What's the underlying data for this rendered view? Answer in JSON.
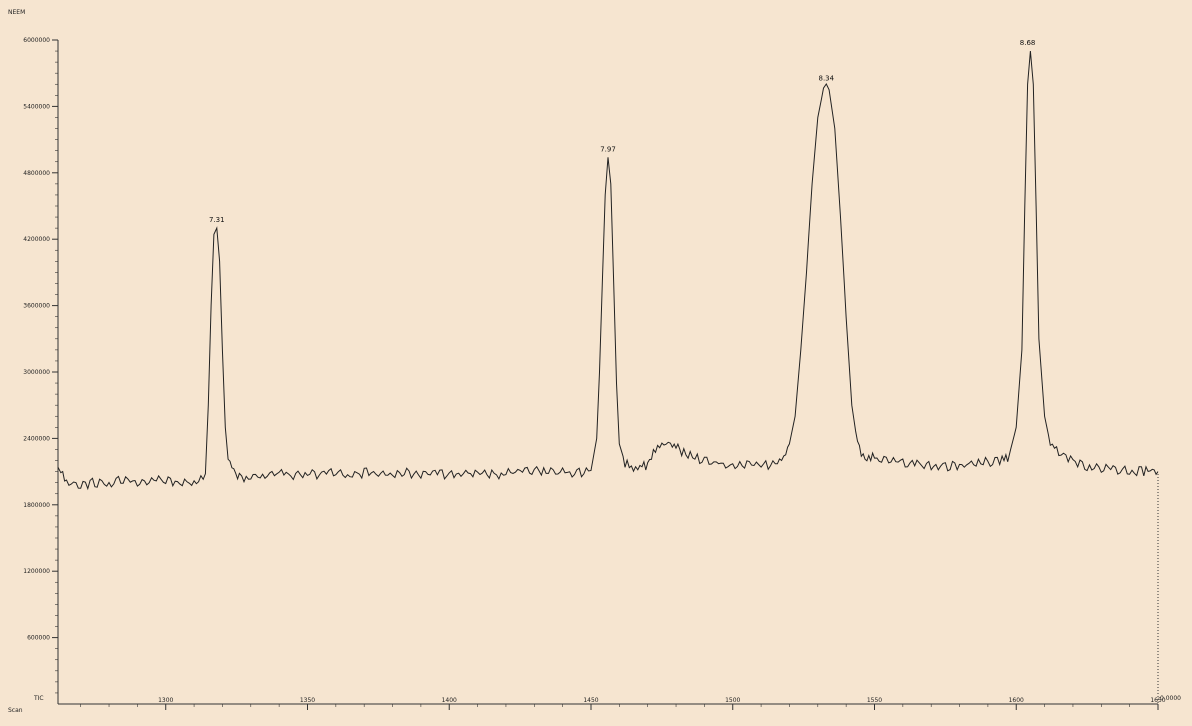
{
  "colors": {
    "background": "#f6e5d0",
    "trace": "#222222",
    "axis": "#333333"
  },
  "chart_data": {
    "type": "line",
    "ylabel": "NEEM",
    "xlabel": "Scan",
    "y_axis_bottom_label": "TIC",
    "right_axis_label": "0.0000",
    "ylim": [
      0,
      6000000
    ],
    "xlim": [
      1262,
      1650
    ],
    "grid": false,
    "y_ticks": [
      {
        "value": 600000,
        "label": "600000"
      },
      {
        "value": 1200000,
        "label": "1200000"
      },
      {
        "value": 1800000,
        "label": "1800000"
      },
      {
        "value": 2400000,
        "label": "2400000"
      },
      {
        "value": 3000000,
        "label": "3000000"
      },
      {
        "value": 3600000,
        "label": "3600000"
      },
      {
        "value": 4200000,
        "label": "4200000"
      },
      {
        "value": 4800000,
        "label": "4800000"
      },
      {
        "value": 5400000,
        "label": "5400000"
      },
      {
        "value": 6000000,
        "label": "6000000"
      }
    ],
    "x_ticks": [
      {
        "value": 1300,
        "label": "1300"
      },
      {
        "value": 1350,
        "label": "1350"
      },
      {
        "value": 1400,
        "label": "1400"
      },
      {
        "value": 1450,
        "label": "1450"
      },
      {
        "value": 1500,
        "label": "1500"
      },
      {
        "value": 1550,
        "label": "1550"
      },
      {
        "value": 1600,
        "label": "1600"
      },
      {
        "value": 1650,
        "label": "1650"
      }
    ],
    "peaks": [
      {
        "x": 1318,
        "y": 4300000,
        "label": "7.31"
      },
      {
        "x": 1456,
        "y": 4940000,
        "label": "7.97"
      },
      {
        "x": 1533,
        "y": 5580000,
        "label": "8.34"
      },
      {
        "x": 1604,
        "y": 5900000,
        "label": "8.68"
      }
    ],
    "series": [
      {
        "x": [
          1262,
          1263,
          1265,
          1270,
          1275,
          1280,
          1285,
          1290,
          1295,
          1300,
          1305,
          1310,
          1314,
          1315,
          1316,
          1317,
          1318,
          1319,
          1320,
          1321,
          1322,
          1324,
          1326,
          1330,
          1335,
          1340,
          1345,
          1350,
          1355,
          1360,
          1365,
          1370,
          1375,
          1380,
          1385,
          1390,
          1395,
          1400,
          1405,
          1410,
          1415,
          1420,
          1425,
          1430,
          1435,
          1440,
          1445,
          1450,
          1452,
          1453,
          1454,
          1455,
          1456,
          1457,
          1458,
          1459,
          1460,
          1462,
          1465,
          1468,
          1470,
          1472,
          1475,
          1478,
          1480,
          1482,
          1485,
          1490,
          1495,
          1500,
          1505,
          1510,
          1515,
          1518,
          1520,
          1522,
          1524,
          1526,
          1528,
          1530,
          1532,
          1533,
          1534,
          1536,
          1538,
          1540,
          1542,
          1544,
          1546,
          1548,
          1550,
          1555,
          1560,
          1565,
          1570,
          1575,
          1580,
          1585,
          1590,
          1595,
          1597,
          1598,
          1600,
          1602,
          1603,
          1604,
          1605,
          1606,
          1607,
          1608,
          1610,
          1612,
          1615,
          1620,
          1625,
          1630,
          1635,
          1640,
          1645,
          1648,
          1650
        ],
        "y": [
          2110000,
          2080000,
          2010000,
          1970000,
          2000000,
          1980000,
          2040000,
          1990000,
          2030000,
          2020000,
          2000000,
          2010000,
          2080000,
          2700000,
          3600000,
          4250000,
          4300000,
          4000000,
          3200000,
          2500000,
          2200000,
          2120000,
          2050000,
          2040000,
          2060000,
          2090000,
          2060000,
          2090000,
          2070000,
          2100000,
          2060000,
          2090000,
          2080000,
          2070000,
          2090000,
          2070000,
          2080000,
          2070000,
          2090000,
          2080000,
          2070000,
          2080000,
          2110000,
          2120000,
          2100000,
          2090000,
          2090000,
          2110000,
          2400000,
          3000000,
          3800000,
          4600000,
          4940000,
          4700000,
          3800000,
          2900000,
          2350000,
          2180000,
          2120000,
          2160000,
          2140000,
          2280000,
          2350000,
          2360000,
          2330000,
          2280000,
          2250000,
          2200000,
          2180000,
          2150000,
          2170000,
          2150000,
          2170000,
          2230000,
          2350000,
          2600000,
          3200000,
          3900000,
          4700000,
          5300000,
          5560000,
          5580000,
          5550000,
          5200000,
          4400000,
          3500000,
          2700000,
          2350000,
          2250000,
          2230000,
          2220000,
          2200000,
          2180000,
          2170000,
          2160000,
          2150000,
          2160000,
          2170000,
          2190000,
          2200000,
          2230000,
          2300000,
          2500000,
          3200000,
          4500000,
          5600000,
          5900000,
          5600000,
          4500000,
          3300000,
          2600000,
          2350000,
          2280000,
          2200000,
          2150000,
          2130000,
          2120000,
          2110000,
          2100000,
          2120000,
          2100000
        ]
      }
    ]
  }
}
